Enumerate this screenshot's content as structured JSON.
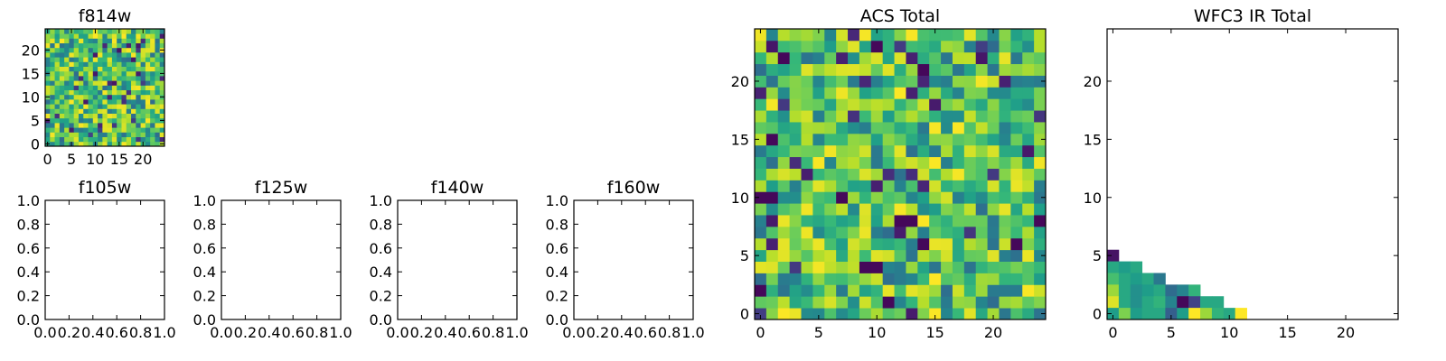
{
  "chart_data": [
    {
      "id": "f814w",
      "type": "heatmap",
      "title": "f814w",
      "grid_size": 25,
      "seed": 814,
      "colormap": "viridis",
      "xticks": [
        0,
        5,
        10,
        15,
        20
      ],
      "yticks": [
        0,
        5,
        10,
        15,
        20
      ],
      "xlim": [
        -0.5,
        24.5
      ],
      "ylim": [
        -0.5,
        24.5
      ]
    },
    {
      "id": "f105w",
      "type": "heatmap",
      "title": "f105w",
      "empty": true,
      "xticks": [
        "0.0",
        "0.2",
        "0.4",
        "0.6",
        "0.8",
        "1.0"
      ],
      "yticks": [
        "0.0",
        "0.2",
        "0.4",
        "0.6",
        "0.8",
        "1.0"
      ],
      "xlim": [
        0,
        1
      ],
      "ylim": [
        0,
        1
      ]
    },
    {
      "id": "f125w",
      "type": "heatmap",
      "title": "f125w",
      "empty": true,
      "xticks": [
        "0.0",
        "0.2",
        "0.4",
        "0.6",
        "0.8",
        "1.0"
      ],
      "yticks": [
        "0.0",
        "0.2",
        "0.4",
        "0.6",
        "0.8",
        "1.0"
      ],
      "xlim": [
        0,
        1
      ],
      "ylim": [
        0,
        1
      ]
    },
    {
      "id": "f140w",
      "type": "heatmap",
      "title": "f140w",
      "empty": true,
      "xticks": [
        "0.0",
        "0.2",
        "0.4",
        "0.6",
        "0.8",
        "1.0"
      ],
      "yticks": [
        "0.0",
        "0.2",
        "0.4",
        "0.6",
        "0.8",
        "1.0"
      ],
      "xlim": [
        0,
        1
      ],
      "ylim": [
        0,
        1
      ]
    },
    {
      "id": "f160w",
      "type": "heatmap",
      "title": "f160w",
      "empty": true,
      "xticks": [
        "0.0",
        "0.2",
        "0.4",
        "0.6",
        "0.8",
        "1.0"
      ],
      "yticks": [
        "0.0",
        "0.2",
        "0.4",
        "0.6",
        "0.8",
        "1.0"
      ],
      "xlim": [
        0,
        1
      ],
      "ylim": [
        0,
        1
      ]
    },
    {
      "id": "acs-total",
      "type": "heatmap",
      "title": "ACS Total",
      "grid_size": 25,
      "seed": 2024,
      "colormap": "viridis",
      "dark_cells": [
        [
          2,
          22
        ],
        [
          10,
          23
        ],
        [
          14,
          21
        ],
        [
          1,
          15
        ],
        [
          0,
          10
        ],
        [
          1,
          10
        ],
        [
          7,
          10
        ],
        [
          12,
          8
        ],
        [
          13,
          8
        ],
        [
          24,
          8
        ],
        [
          14,
          6
        ],
        [
          22,
          6
        ],
        [
          10,
          4
        ],
        [
          9,
          4
        ],
        [
          0,
          2
        ],
        [
          11,
          1
        ]
      ],
      "xticks": [
        0,
        5,
        10,
        15,
        20
      ],
      "yticks": [
        0,
        5,
        10,
        15,
        20
      ],
      "xlim": [
        -0.5,
        24.5
      ],
      "ylim": [
        -0.5,
        24.5
      ]
    },
    {
      "id": "wfc3-ir-total",
      "type": "heatmap",
      "title": "WFC3 IR Total",
      "grid_size": 25,
      "colormap": "viridis",
      "cells": [
        {
          "x": 0,
          "y": 5,
          "v": 0.05
        },
        {
          "x": 0,
          "y": 4,
          "v": 0.6
        },
        {
          "x": 1,
          "y": 4,
          "v": 0.55
        },
        {
          "x": 2,
          "y": 4,
          "v": 0.6
        },
        {
          "x": 0,
          "y": 3,
          "v": 0.7
        },
        {
          "x": 1,
          "y": 3,
          "v": 0.6
        },
        {
          "x": 2,
          "y": 3,
          "v": 0.55
        },
        {
          "x": 3,
          "y": 3,
          "v": 0.6
        },
        {
          "x": 4,
          "y": 3,
          "v": 0.4
        },
        {
          "x": 0,
          "y": 2,
          "v": 0.85
        },
        {
          "x": 1,
          "y": 2,
          "v": 0.6
        },
        {
          "x": 2,
          "y": 2,
          "v": 0.5
        },
        {
          "x": 3,
          "y": 2,
          "v": 0.55
        },
        {
          "x": 4,
          "y": 2,
          "v": 0.6
        },
        {
          "x": 5,
          "y": 2,
          "v": 0.35
        },
        {
          "x": 6,
          "y": 2,
          "v": 0.45
        },
        {
          "x": 7,
          "y": 2,
          "v": 0.65
        },
        {
          "x": 0,
          "y": 1,
          "v": 0.95
        },
        {
          "x": 1,
          "y": 1,
          "v": 0.6
        },
        {
          "x": 2,
          "y": 1,
          "v": 0.5
        },
        {
          "x": 3,
          "y": 1,
          "v": 0.6
        },
        {
          "x": 4,
          "y": 1,
          "v": 0.65
        },
        {
          "x": 5,
          "y": 1,
          "v": 0.45
        },
        {
          "x": 6,
          "y": 1,
          "v": 0.02
        },
        {
          "x": 7,
          "y": 1,
          "v": 0.2
        },
        {
          "x": 8,
          "y": 1,
          "v": 0.6
        },
        {
          "x": 9,
          "y": 1,
          "v": 0.6
        },
        {
          "x": 0,
          "y": 0,
          "v": 0.55
        },
        {
          "x": 1,
          "y": 0,
          "v": 0.8
        },
        {
          "x": 2,
          "y": 0,
          "v": 0.55
        },
        {
          "x": 3,
          "y": 0,
          "v": 0.6
        },
        {
          "x": 4,
          "y": 0,
          "v": 0.6
        },
        {
          "x": 5,
          "y": 0,
          "v": 0.3
        },
        {
          "x": 6,
          "y": 0,
          "v": 0.55
        },
        {
          "x": 7,
          "y": 0,
          "v": 1.0
        },
        {
          "x": 8,
          "y": 0,
          "v": 0.85
        },
        {
          "x": 9,
          "y": 0,
          "v": 0.65
        },
        {
          "x": 10,
          "y": 0,
          "v": 0.6
        },
        {
          "x": 11,
          "y": 0,
          "v": 1.0
        }
      ],
      "xticks": [
        0,
        5,
        10,
        15,
        20
      ],
      "yticks": [
        0,
        5,
        10,
        15,
        20
      ],
      "xlim": [
        -0.5,
        24.5
      ],
      "ylim": [
        -0.5,
        24.5
      ]
    }
  ]
}
